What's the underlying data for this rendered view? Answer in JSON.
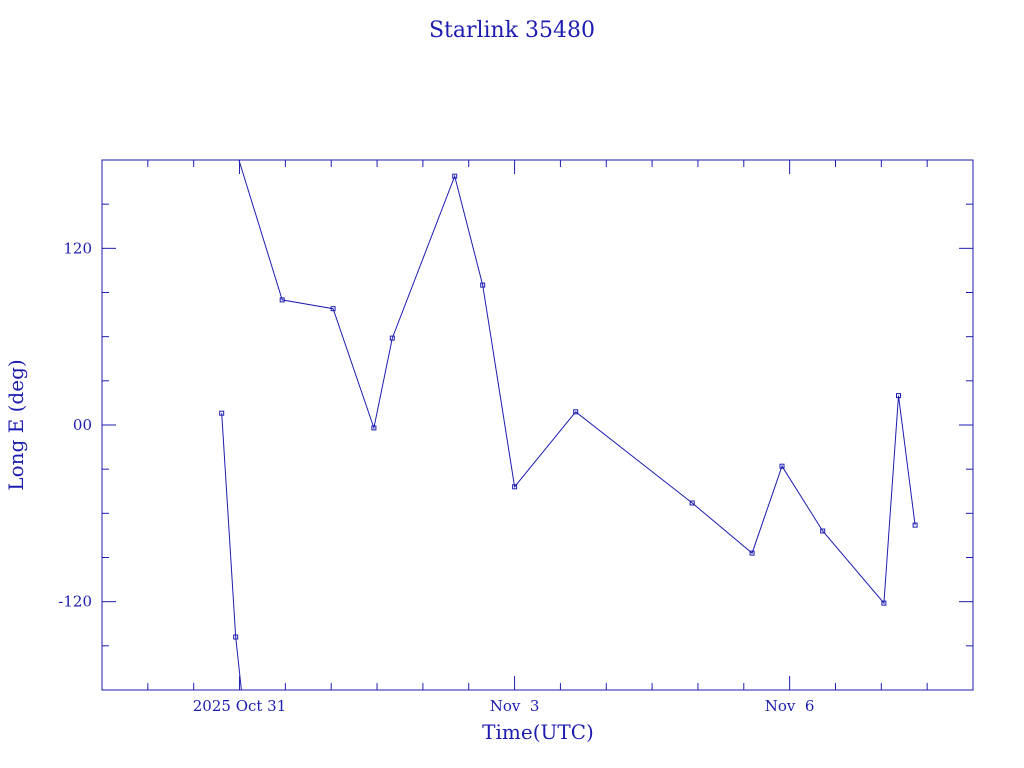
{
  "chart_data": {
    "type": "line",
    "title": "Starlink 35480",
    "xlabel": "Time(UTC)",
    "ylabel": "Long E (deg)",
    "ylim": [
      -180,
      180
    ],
    "xlim": [
      "2025-10-29 12:00",
      "2025-11-08 00:00"
    ],
    "y_ticks": [
      {
        "value": 120,
        "label": "120"
      },
      {
        "value": 0,
        "label": "00"
      },
      {
        "value": -120,
        "label": "-120"
      }
    ],
    "x_ticks": [
      {
        "value": "2025-10-31",
        "label": "2025 Oct 31"
      },
      {
        "value": "2025-11-03",
        "label": "Nov  3"
      },
      {
        "value": "2025-11-06",
        "label": "Nov  6"
      }
    ],
    "grid": false,
    "color": "#1c1cb0",
    "segments": [
      {
        "points": [
          {
            "x": "2025-10-30 19:20",
            "y": 8
          },
          {
            "x": "2025-10-30 23:00",
            "y": -144
          },
          {
            "x": "2025-10-31 00:30",
            "y": -180
          }
        ]
      },
      {
        "points": [
          {
            "x": "2025-10-30 23:50",
            "y": 180
          },
          {
            "x": "2025-10-31 11:10",
            "y": 85
          },
          {
            "x": "2025-11-01 00:30",
            "y": 79
          },
          {
            "x": "2025-11-01 11:10",
            "y": -2
          },
          {
            "x": "2025-11-01 16:00",
            "y": 59
          },
          {
            "x": "2025-11-02 08:20",
            "y": 169
          },
          {
            "x": "2025-11-02 15:40",
            "y": 95
          },
          {
            "x": "2025-11-03 00:00",
            "y": -42
          },
          {
            "x": "2025-11-03 16:00",
            "y": 9
          },
          {
            "x": "2025-11-04 22:30",
            "y": -53
          },
          {
            "x": "2025-11-05 14:10",
            "y": -87
          },
          {
            "x": "2025-11-05 22:00",
            "y": -28
          },
          {
            "x": "2025-11-06 08:40",
            "y": -72
          },
          {
            "x": "2025-11-07 00:40",
            "y": -121
          },
          {
            "x": "2025-11-07 04:30",
            "y": 20
          },
          {
            "x": "2025-11-07 08:50",
            "y": -68
          }
        ]
      }
    ]
  }
}
